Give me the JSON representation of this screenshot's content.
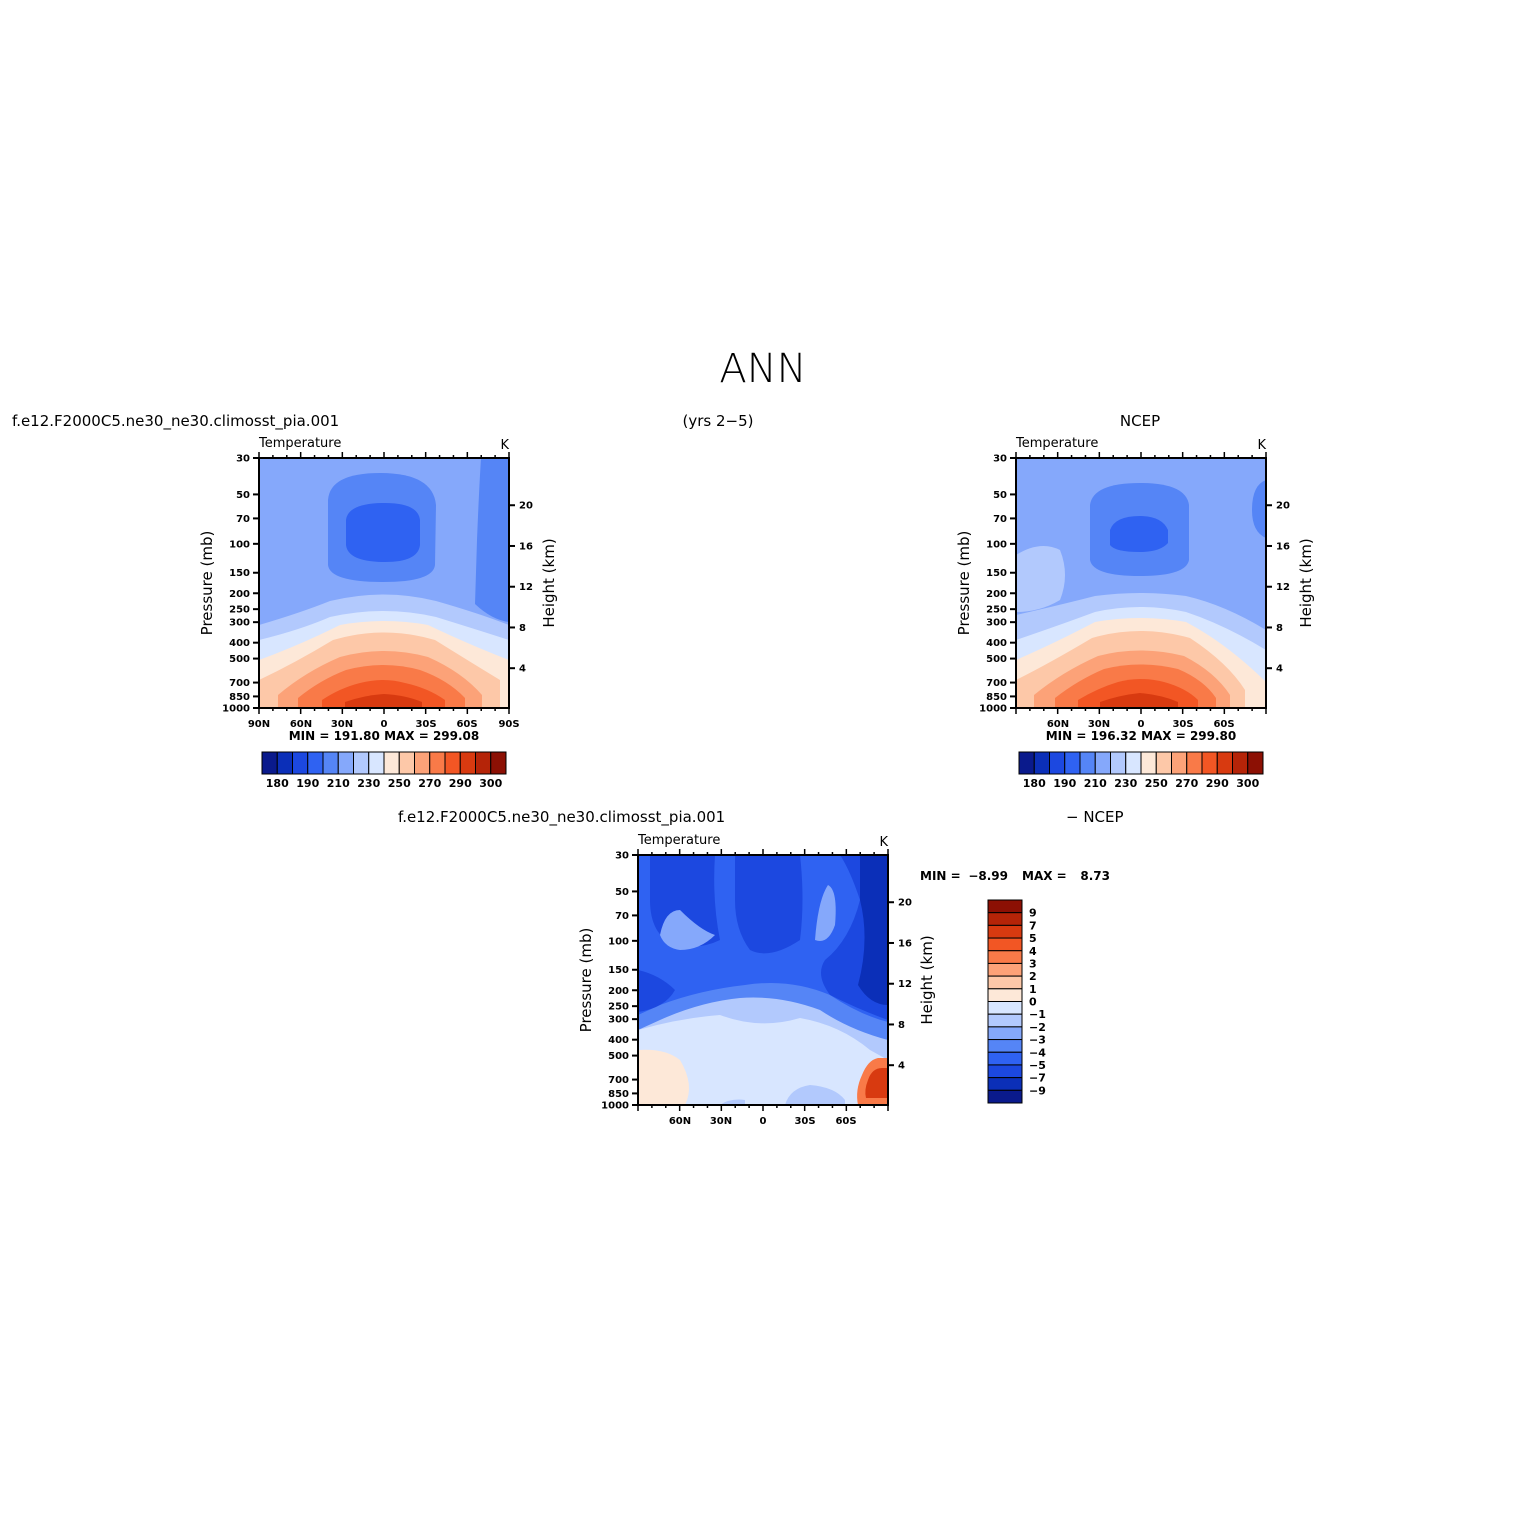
{
  "figure_title": "ANN",
  "chart_data": [
    {
      "type": "heatmap",
      "panel": "model",
      "left_title": "f.e12.F2000C5.ne30_ne30.climosst_pia.001",
      "right_title": "(yrs 2−5)",
      "variable_label": "Temperature",
      "units": "K",
      "ylabel": "Pressure (mb)",
      "ylabel_right": "Height (km)",
      "x_tick_labels": [
        "90N",
        "60N",
        "30N",
        "0",
        "30S",
        "60S",
        "90S"
      ],
      "x_tick_values": [
        90,
        60,
        30,
        0,
        -30,
        -60,
        -90
      ],
      "y_tick_labels": [
        "30",
        "50",
        "70",
        "100",
        "150",
        "200",
        "250",
        "300",
        "400",
        "500",
        "700",
        "850",
        "1000"
      ],
      "height_tick_labels": [
        "4",
        "8",
        "12",
        "16",
        "20"
      ],
      "xlim": [
        90,
        -90
      ],
      "ylim": [
        1000,
        30
      ],
      "y_scale": "log",
      "stats": "MIN = 191.80 MAX = 299.08",
      "min": 191.8,
      "max": 299.08,
      "colorbar": {
        "orientation": "horizontal",
        "labels": [
          "180",
          "190",
          "210",
          "230",
          "250",
          "270",
          "290",
          "300"
        ],
        "colors": [
          "#0a1a8c",
          "#0b2fb8",
          "#1c48e0",
          "#2f62f2",
          "#5585f6",
          "#85a8fb",
          "#b2c9fd",
          "#d8e6ff",
          "#fde8d8",
          "#fdc8a8",
          "#fca278",
          "#f97a48",
          "#f25624",
          "#d83a10",
          "#b52408",
          "#8c1004"
        ]
      }
    },
    {
      "type": "heatmap",
      "panel": "obs",
      "right_title": "NCEP",
      "variable_label": "Temperature",
      "units": "K",
      "ylabel": "Pressure (mb)",
      "ylabel_right": "Height (km)",
      "x_tick_labels": [
        "60N",
        "30N",
        "0",
        "30S",
        "60S"
      ],
      "x_tick_values": [
        60,
        30,
        0,
        -30,
        -60
      ],
      "y_tick_labels": [
        "30",
        "50",
        "70",
        "100",
        "150",
        "200",
        "250",
        "300",
        "400",
        "500",
        "700",
        "850",
        "1000"
      ],
      "height_tick_labels": [
        "4",
        "8",
        "12",
        "16",
        "20"
      ],
      "xlim": [
        90,
        -90
      ],
      "ylim": [
        1000,
        30
      ],
      "y_scale": "log",
      "stats": "MIN = 196.32 MAX = 299.80",
      "min": 196.32,
      "max": 299.8,
      "colorbar": {
        "orientation": "horizontal",
        "labels": [
          "180",
          "190",
          "210",
          "230",
          "250",
          "270",
          "290",
          "300"
        ],
        "colors": [
          "#0a1a8c",
          "#0b2fb8",
          "#1c48e0",
          "#2f62f2",
          "#5585f6",
          "#85a8fb",
          "#b2c9fd",
          "#d8e6ff",
          "#fde8d8",
          "#fdc8a8",
          "#fca278",
          "#f97a48",
          "#f25624",
          "#d83a10",
          "#b52408",
          "#8c1004"
        ]
      }
    },
    {
      "type": "heatmap",
      "panel": "difference",
      "left_title": "f.e12.F2000C5.ne30_ne30.climosst_pia.001",
      "right_title": "− NCEP",
      "variable_label": "Temperature",
      "units": "K",
      "ylabel": "Pressure (mb)",
      "ylabel_right": "Height (km)",
      "x_tick_labels": [
        "60N",
        "30N",
        "0",
        "30S",
        "60S"
      ],
      "x_tick_values": [
        60,
        30,
        0,
        -30,
        -60
      ],
      "y_tick_labels": [
        "30",
        "50",
        "70",
        "100",
        "150",
        "200",
        "250",
        "300",
        "400",
        "500",
        "700",
        "850",
        "1000"
      ],
      "height_tick_labels": [
        "4",
        "8",
        "12",
        "16",
        "20"
      ],
      "xlim": [
        90,
        -90
      ],
      "ylim": [
        1000,
        30
      ],
      "y_scale": "log",
      "min_label": "MIN =",
      "min_value": "−8.99",
      "max_label": "MAX =",
      "max_value": "8.73",
      "min": -8.99,
      "max": 8.73,
      "colorbar": {
        "orientation": "vertical",
        "labels": [
          "9",
          "7",
          "5",
          "4",
          "3",
          "2",
          "1",
          "0",
          "−1",
          "−2",
          "−3",
          "−4",
          "−5",
          "−7",
          "−9"
        ],
        "colors": [
          "#8c1004",
          "#b52408",
          "#d83a10",
          "#f25624",
          "#f97a48",
          "#fca278",
          "#fdc8a8",
          "#fde8d8",
          "#d8e6ff",
          "#b2c9fd",
          "#85a8fb",
          "#5585f6",
          "#2f62f2",
          "#1c48e0",
          "#0b2fb8",
          "#0a1a8c"
        ]
      }
    }
  ]
}
